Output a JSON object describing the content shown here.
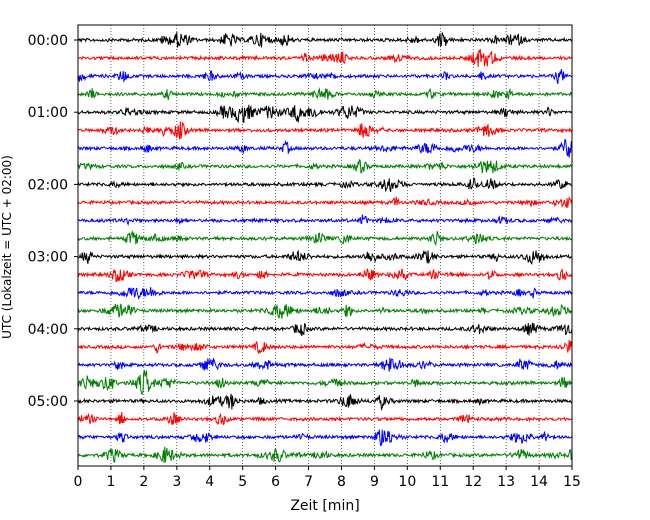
{
  "chart_data": {
    "type": "line",
    "title": "",
    "xlabel": "Zeit  [min]",
    "ylabel": "UTC (Lokalzeit = UTC + 02:00)",
    "xlim": [
      0,
      15
    ],
    "x_ticks": [
      "0",
      "1",
      "2",
      "3",
      "4",
      "5",
      "6",
      "7",
      "8",
      "9",
      "10",
      "11",
      "12",
      "13",
      "14",
      "15"
    ],
    "y_ticks": [
      "00:00",
      "01:00",
      "02:00",
      "03:00",
      "04:00",
      "05:00"
    ],
    "trace_interval_min": 15,
    "trace_count": 24,
    "trace_colors": [
      "#000000",
      "#ff0000",
      "#0000ff",
      "#008000"
    ],
    "grid": "vertical dotted lines at each minute",
    "legend": "none"
  }
}
